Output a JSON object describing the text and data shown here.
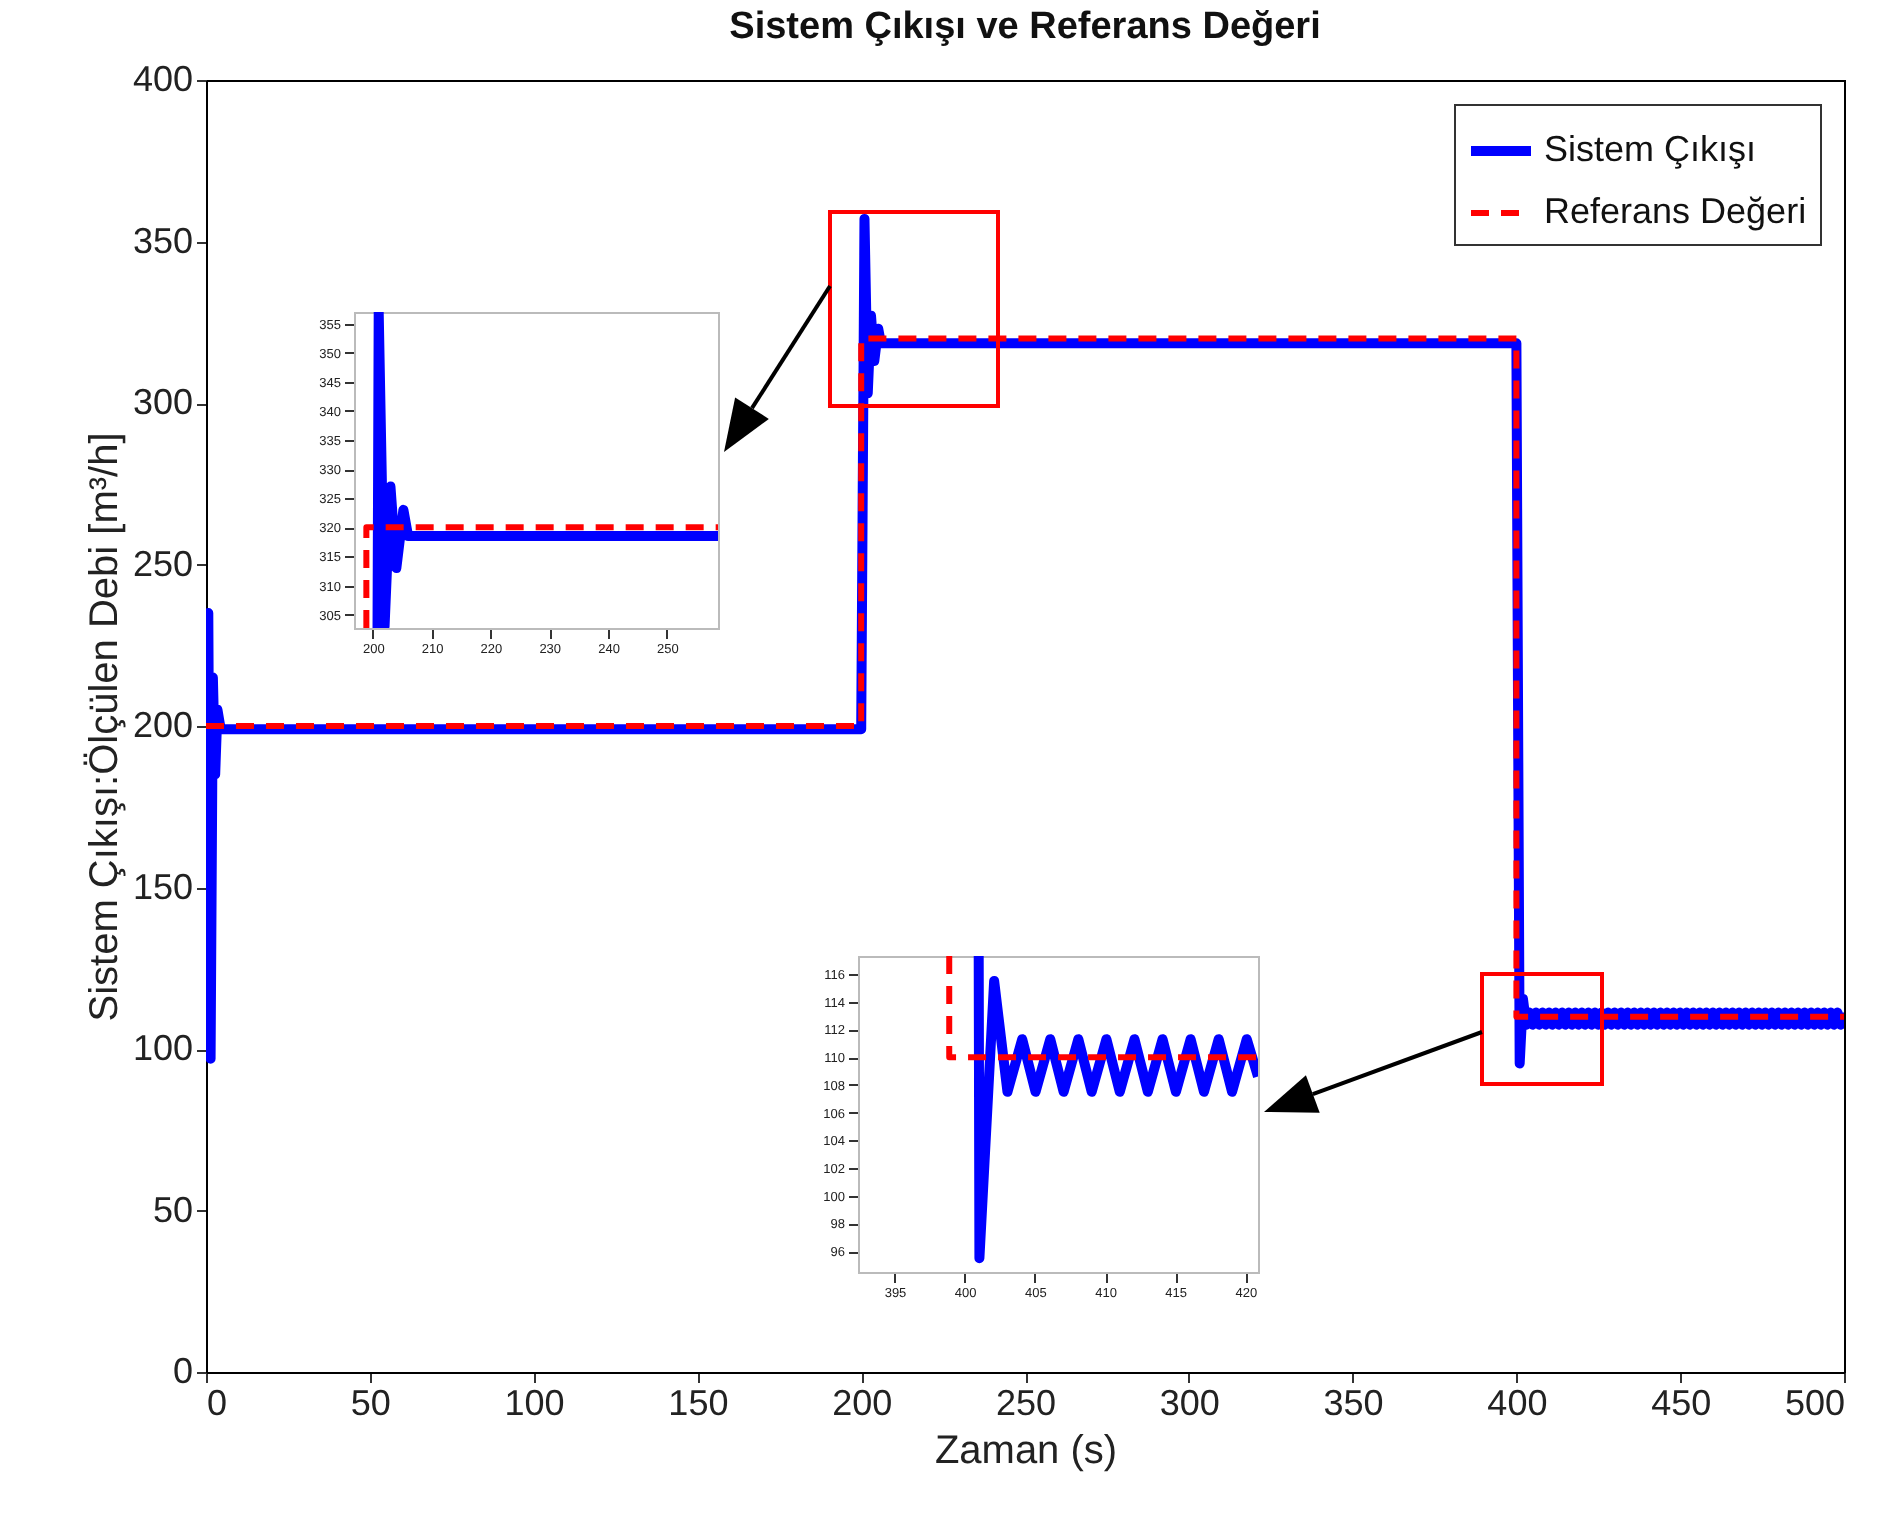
{
  "chart_data": [
    {
      "type": "line",
      "title": "Sistem Çıkışı ve Referans Değeri",
      "xlabel": "Zaman (s)",
      "ylabel": "Sistem Çıkışı:Ölçülen Debi [m³/h]",
      "xlim": [
        0,
        500
      ],
      "xticks": [
        0,
        50,
        100,
        150,
        200,
        250,
        300,
        350,
        400,
        450,
        500
      ],
      "ylim": [
        0,
        400
      ],
      "yticks": [
        0,
        50,
        100,
        150,
        200,
        250,
        300,
        350,
        400
      ],
      "grid": false,
      "legend": "top right",
      "series": [
        {
          "name": "Sistem Çıkışı",
          "color": "#0000ff",
          "line_style": "solid",
          "x": [
            0,
            0.7,
            1.4,
            2.1,
            2.8,
            3.5,
            4.5,
            200,
            201,
            202,
            203,
            204,
            205.2,
            206,
            400,
            401,
            402,
            403,
            404,
            405,
            406,
            407,
            408,
            409,
            410,
            411,
            412,
            413,
            414,
            415,
            416,
            417,
            418,
            419,
            420,
            421,
            422,
            423,
            424,
            425,
            426,
            427,
            428,
            429,
            430,
            431,
            432,
            433,
            434,
            435,
            436,
            437,
            438,
            439,
            440,
            441,
            442,
            443,
            444,
            445,
            446,
            447,
            448,
            449,
            450,
            451,
            452,
            453,
            454,
            455,
            456,
            457,
            458,
            459,
            460,
            461,
            462,
            463,
            464,
            465,
            466,
            467,
            468,
            469,
            470,
            471,
            472,
            473,
            474,
            475,
            476,
            477,
            478,
            479,
            480,
            481,
            482,
            483,
            484,
            485,
            486,
            487,
            488,
            489,
            490,
            491,
            492,
            493,
            494,
            495,
            496,
            497,
            498,
            499,
            500
          ],
          "values": [
            100,
            235,
            97,
            215,
            185,
            205,
            199,
            199,
            357,
            303,
            327,
            313,
            323,
            318.5,
            318.5,
            95.5,
            115.5,
            107.5,
            111.3,
            107.5,
            111.3,
            107.5,
            111.3,
            107.5,
            111.3,
            107.5,
            111.3,
            107.5,
            111.3,
            107.5,
            111.3,
            107.5,
            111.3,
            107.5,
            111.3,
            107.5,
            111.3,
            107.5,
            111.3,
            107.5,
            111.3,
            107.5,
            111.3,
            107.5,
            111.3,
            107.5,
            111.3,
            107.5,
            111.3,
            107.5,
            111.3,
            107.5,
            111.3,
            107.5,
            111.3,
            107.5,
            111.3,
            107.5,
            111.3,
            107.5,
            111.3,
            107.5,
            111.3,
            107.5,
            111.3,
            107.5,
            111.3,
            107.5,
            111.3,
            107.5,
            111.3,
            107.5,
            111.3,
            107.5,
            111.3,
            107.5,
            111.3,
            107.5,
            111.3,
            107.5,
            111.3,
            107.5,
            111.3,
            107.5,
            111.3,
            107.5,
            111.3,
            107.5,
            111.3,
            107.5,
            111.3,
            107.5,
            111.3,
            107.5,
            111.3,
            107.5,
            111.3,
            107.5,
            111.3,
            107.5,
            111.3,
            107.5,
            111.3,
            107.5,
            111.3,
            107.5,
            111.3,
            107.5,
            111.3,
            107.5,
            111.3,
            107.5,
            111.3,
            107.5,
            111.3
          ]
        },
        {
          "name": "Referans Değeri",
          "color": "#ff0000",
          "line_style": "dashed",
          "x": [
            0,
            200,
            200,
            400,
            400,
            500
          ],
          "values": [
            200,
            200,
            320,
            320,
            110,
            110
          ]
        }
      ]
    },
    {
      "type": "line",
      "xlim": [
        196.8,
        258.7
      ],
      "xticks": [
        200,
        210,
        220,
        230,
        240,
        250
      ],
      "ylim": [
        302.7,
        357
      ],
      "yticks": [
        305,
        310,
        315,
        320,
        325,
        330,
        335,
        340,
        345,
        350,
        355
      ],
      "grid": false,
      "series": [
        {
          "color": "#0000ff",
          "line_style": "solid",
          "x": [
            200.8,
            201,
            202,
            203,
            204,
            205.2,
            206,
            258.7
          ],
          "values": [
            302.7,
            357,
            303,
            327,
            313,
            323,
            318.5,
            318.5
          ]
        },
        {
          "color": "#ff0000",
          "line_style": "dashed",
          "x": [
            198.9,
            198.9,
            258.7
          ],
          "values": [
            302.7,
            320,
            320
          ]
        }
      ]
    },
    {
      "type": "line",
      "xlim": [
        392.4,
        420.9
      ],
      "xticks": [
        395,
        400,
        405,
        410,
        415,
        420
      ],
      "ylim": [
        94.5,
        117.3
      ],
      "yticks": [
        96,
        98,
        100,
        102,
        104,
        106,
        108,
        110,
        112,
        114,
        116
      ],
      "grid": false,
      "series": [
        {
          "color": "#0000ff",
          "line_style": "solid",
          "x": [
            401,
            401.05,
            402.1,
            403.05,
            404.1,
            405.05,
            406.1,
            407.05,
            408.1,
            409.05,
            410.1,
            411.05,
            412.1,
            413.05,
            414.1,
            415.05,
            416.1,
            417.05,
            418.1,
            419.05,
            420.1,
            420.9
          ],
          "values": [
            117.3,
            95.5,
            115.5,
            107.5,
            111.3,
            107.5,
            111.3,
            107.5,
            111.3,
            107.5,
            111.3,
            107.5,
            111.3,
            107.5,
            111.3,
            107.5,
            111.3,
            107.5,
            111.3,
            107.5,
            111.3,
            108.6
          ]
        },
        {
          "color": "#ff0000",
          "line_style": "dashed",
          "x": [
            398.9,
            398.9,
            420.9
          ],
          "values": [
            117.3,
            110,
            110
          ]
        }
      ]
    }
  ]
}
